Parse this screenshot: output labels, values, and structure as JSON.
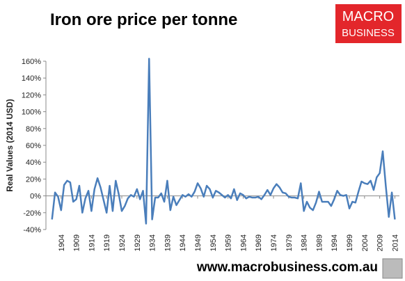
{
  "chart_data": {
    "type": "line",
    "title": "Iron ore price per tonne",
    "y_label": "Real Values (2014 USD)",
    "x": [
      1901,
      1902,
      1903,
      1904,
      1905,
      1906,
      1907,
      1908,
      1909,
      1910,
      1911,
      1912,
      1913,
      1914,
      1915,
      1916,
      1917,
      1918,
      1919,
      1920,
      1921,
      1922,
      1923,
      1924,
      1925,
      1926,
      1927,
      1928,
      1929,
      1930,
      1931,
      1932,
      1933,
      1934,
      1935,
      1936,
      1937,
      1938,
      1939,
      1940,
      1941,
      1942,
      1943,
      1944,
      1945,
      1946,
      1947,
      1948,
      1949,
      1950,
      1951,
      1952,
      1953,
      1954,
      1955,
      1956,
      1957,
      1958,
      1959,
      1960,
      1961,
      1962,
      1963,
      1964,
      1965,
      1966,
      1967,
      1968,
      1969,
      1970,
      1971,
      1972,
      1973,
      1974,
      1975,
      1976,
      1977,
      1978,
      1979,
      1980,
      1981,
      1982,
      1983,
      1984,
      1985,
      1986,
      1987,
      1988,
      1989,
      1990,
      1991,
      1992,
      1993,
      1994,
      1995,
      1996,
      1997,
      1998,
      1999,
      2000,
      2001,
      2002,
      2003,
      2004,
      2005,
      2006,
      2007,
      2008,
      2009,
      2010,
      2011,
      2012,
      2013,
      2014
    ],
    "series": [
      {
        "name": "Iron ore",
        "color": "#4a7ebb",
        "values": [
          -28,
          4,
          -1,
          -17,
          13,
          18,
          16,
          -7,
          -4,
          12,
          -20,
          -3,
          6,
          -18,
          8,
          21,
          10,
          -5,
          -20,
          12,
          -18,
          18,
          2,
          -18,
          -12,
          -3,
          1,
          -1,
          8,
          -4,
          6,
          -33,
          163,
          -28,
          -2,
          -2,
          3,
          -7,
          18,
          -17,
          -1,
          -11,
          -5,
          1,
          -1,
          2,
          -1,
          5,
          15,
          9,
          -1,
          12,
          8,
          -2,
          6,
          4,
          1,
          -2,
          1,
          -3,
          8,
          -5,
          3,
          1,
          -3,
          -1,
          -2,
          -2,
          -1,
          -4,
          1,
          7,
          1,
          9,
          14,
          10,
          4,
          3,
          -1,
          -2,
          -2,
          -3,
          15,
          -18,
          -7,
          -14,
          -17,
          -8,
          5,
          -7,
          -7,
          -7,
          -12,
          -4,
          6,
          1,
          0,
          1,
          -15,
          -7,
          -8,
          5,
          17,
          15,
          14,
          18,
          7,
          22,
          27,
          53,
          12,
          -25,
          4,
          -28
        ]
      }
    ],
    "xlim": [
      1899,
      2015.5
    ],
    "xticks": [
      1904,
      1909,
      1914,
      1919,
      1924,
      1929,
      1934,
      1939,
      1944,
      1949,
      1954,
      1959,
      1964,
      1969,
      1974,
      1979,
      1984,
      1989,
      1994,
      1999,
      2004,
      2009,
      2014
    ],
    "ylim": [
      -40,
      160
    ],
    "yticks": [
      {
        "value": -40,
        "label": "-40%"
      },
      {
        "value": -20,
        "label": "-20%"
      },
      {
        "value": 0,
        "label": "0%"
      },
      {
        "value": 20,
        "label": "20%"
      },
      {
        "value": 40,
        "label": "40%"
      },
      {
        "value": 60,
        "label": "60%"
      },
      {
        "value": 80,
        "label": "80%"
      },
      {
        "value": 100,
        "label": "100%"
      },
      {
        "value": 120,
        "label": "120%"
      },
      {
        "value": 140,
        "label": "140%"
      },
      {
        "value": 160,
        "label": "160%"
      }
    ],
    "grid": false
  },
  "logo": {
    "line1": "MACRO",
    "line2": "BUSINESS"
  },
  "footer": "www.macrobusiness.com.au"
}
